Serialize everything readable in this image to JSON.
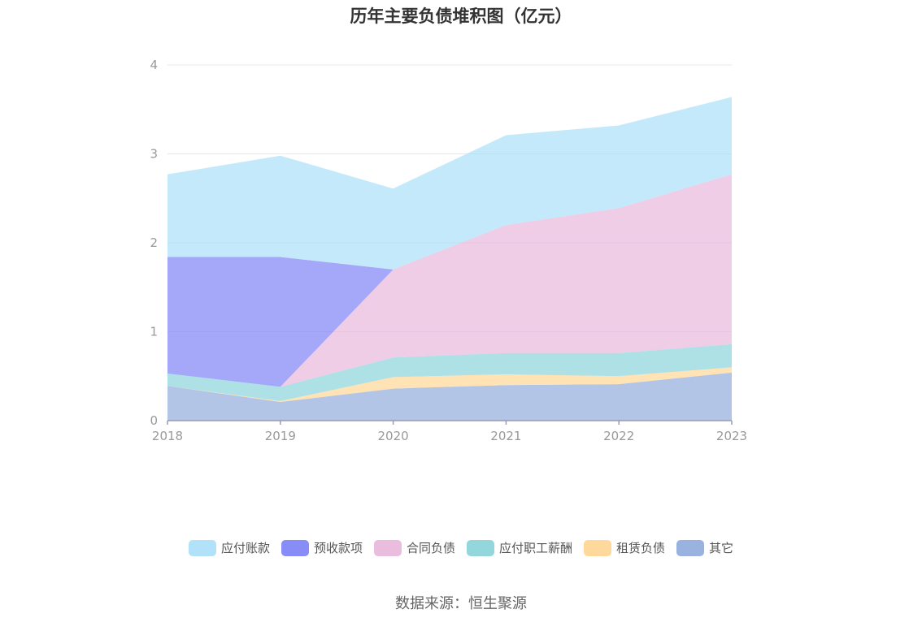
{
  "chart_data": {
    "type": "area",
    "stacked": true,
    "title": "历年主要负债堆积图（亿元）",
    "categories": [
      "2018",
      "2019",
      "2020",
      "2021",
      "2022",
      "2023"
    ],
    "ylim": [
      0,
      4
    ],
    "yticks": [
      "0",
      "1",
      "2",
      "3",
      "4"
    ],
    "grid": true,
    "legend_position": "bottom",
    "series": [
      {
        "name": "其它",
        "color": "#8faadc",
        "values": [
          0.39,
          0.21,
          0.36,
          0.4,
          0.41,
          0.54
        ]
      },
      {
        "name": "租赁负债",
        "color": "#ffd591",
        "values": [
          0.0,
          0.01,
          0.13,
          0.12,
          0.09,
          0.06
        ]
      },
      {
        "name": "应付职工薪酬",
        "color": "#87d3d9",
        "values": [
          0.14,
          0.16,
          0.22,
          0.24,
          0.26,
          0.26
        ]
      },
      {
        "name": "合同负债",
        "color": "#e8b6da",
        "values": [
          0.0,
          0.0,
          0.99,
          1.44,
          1.63,
          1.91
        ]
      },
      {
        "name": "预收款项",
        "color": "#7b7ff5",
        "values": [
          1.31,
          1.46,
          0.0,
          0.0,
          0.0,
          0.0
        ]
      },
      {
        "name": "应付账款",
        "color": "#a8dff8",
        "values": [
          0.93,
          1.14,
          0.91,
          1.01,
          0.93,
          0.87
        ]
      }
    ],
    "legend_order": [
      "应付账款",
      "预收款项",
      "合同负债",
      "应付职工薪酬",
      "租赁负债",
      "其它"
    ]
  },
  "source_note": "数据来源：恒生聚源"
}
